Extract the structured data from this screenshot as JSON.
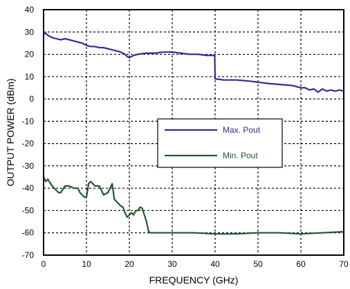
{
  "chart_data": {
    "type": "line",
    "title": "",
    "xlabel": "FREQUENCY (GHz)",
    "ylabel": "OUTPUT POWER (dBm)",
    "xlim": [
      0,
      70
    ],
    "ylim": [
      -70,
      40
    ],
    "xticks": [
      0,
      10,
      20,
      30,
      40,
      50,
      60,
      70
    ],
    "yticks": [
      -70,
      -60,
      -50,
      -40,
      -30,
      -20,
      -10,
      0,
      10,
      20,
      30,
      40
    ],
    "grid": true,
    "legend_position": "center-right",
    "series": [
      {
        "name": "Max. Pout",
        "color": "#2b2f8f",
        "x": [
          0,
          0.5,
          1,
          2,
          3,
          4,
          5,
          6,
          7,
          8,
          9,
          10,
          11,
          12,
          13,
          14,
          15,
          16,
          17,
          18,
          19,
          19.5,
          20,
          21,
          22,
          24,
          26,
          28,
          30,
          32,
          34,
          36,
          38,
          39.9,
          40,
          42,
          45,
          48,
          50,
          52,
          55,
          58,
          60,
          61,
          62,
          63,
          64,
          65,
          66,
          67,
          68,
          69,
          70
        ],
        "y": [
          29,
          29.5,
          28.5,
          27.5,
          27,
          26.5,
          27,
          26.5,
          26,
          25.5,
          25,
          24,
          23.5,
          23.5,
          23,
          23,
          22.5,
          22,
          21.5,
          21,
          20,
          19,
          18.5,
          19.5,
          20,
          20.5,
          20.5,
          21,
          21,
          20.5,
          20,
          20,
          19.5,
          19.5,
          9,
          8.5,
          8.5,
          8,
          7.5,
          7,
          6.5,
          6,
          5,
          5,
          4,
          4.5,
          3,
          4.5,
          3.5,
          4,
          3.5,
          4,
          3.5
        ]
      },
      {
        "name": "Min. Pout",
        "color": "#1f5a2c",
        "x": [
          0,
          0.5,
          1,
          2,
          3,
          3.5,
          4,
          5,
          6,
          7,
          8,
          8.5,
          9,
          9.5,
          10,
          10.5,
          11,
          12,
          13,
          14,
          15,
          15.5,
          16,
          16.5,
          17,
          18,
          18.5,
          19,
          19.5,
          20,
          20.5,
          21,
          21.5,
          22,
          22.5,
          23,
          23.5,
          24,
          24.5,
          25,
          30,
          35,
          40,
          45,
          50,
          55,
          60,
          65,
          70
        ],
        "y": [
          -35,
          -37,
          -36,
          -39,
          -41,
          -42,
          -42,
          -39,
          -39,
          -40,
          -40,
          -42,
          -43,
          -44,
          -44,
          -38,
          -37,
          -39,
          -39,
          -43,
          -42,
          -40,
          -38,
          -45,
          -46,
          -48,
          -48.5,
          -51,
          -53,
          -52,
          -51,
          -52,
          -50,
          -50,
          -48.5,
          -49,
          -52,
          -55,
          -59.5,
          -60,
          -60,
          -60,
          -60.5,
          -60.5,
          -60,
          -60,
          -60.5,
          -60,
          -59.5
        ]
      }
    ]
  }
}
